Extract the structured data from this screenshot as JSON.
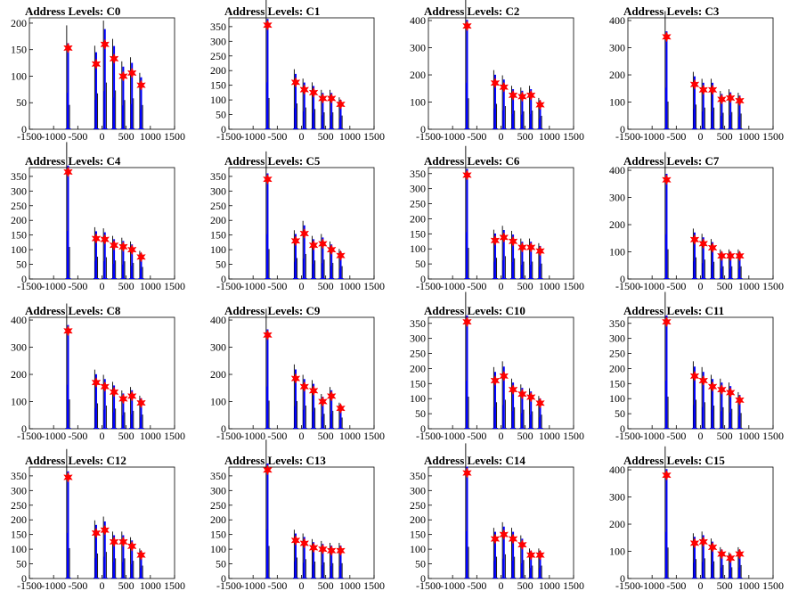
{
  "colors": {
    "histogram": "#0000ff",
    "marker": "#ff0000",
    "baseline": "#000000"
  },
  "chart_data": [
    {
      "type": "bar",
      "title": "Address Levels: C0",
      "xlim": [
        -1500,
        1500
      ],
      "ylim": [
        0,
        210
      ],
      "xticks": [
        "-1500",
        "-1000",
        "-500",
        "0",
        "500",
        "1000",
        "1500"
      ],
      "yticks": [
        "0",
        "50",
        "100",
        "150",
        "200"
      ],
      "peaks": [
        {
          "x": -700,
          "y": 153
        },
        {
          "x": -120,
          "y": 123
        },
        {
          "x": 60,
          "y": 160
        },
        {
          "x": 250,
          "y": 133
        },
        {
          "x": 440,
          "y": 100
        },
        {
          "x": 620,
          "y": 106
        },
        {
          "x": 810,
          "y": 83
        }
      ]
    },
    {
      "type": "bar",
      "title": "Address Levels: C1",
      "xlim": [
        -1500,
        1500
      ],
      "ylim": [
        0,
        380
      ],
      "xticks": [
        "-1500",
        "-1000",
        "-500",
        "0",
        "500",
        "1000",
        "1500"
      ],
      "yticks": [
        "0",
        "50",
        "100",
        "150",
        "200",
        "250",
        "300",
        "350"
      ],
      "peaks": [
        {
          "x": -700,
          "y": 355
        },
        {
          "x": -120,
          "y": 160
        },
        {
          "x": 60,
          "y": 135
        },
        {
          "x": 250,
          "y": 125
        },
        {
          "x": 440,
          "y": 105
        },
        {
          "x": 620,
          "y": 105
        },
        {
          "x": 810,
          "y": 85
        }
      ]
    },
    {
      "type": "bar",
      "title": "Address Levels: C2",
      "xlim": [
        -1500,
        1500
      ],
      "ylim": [
        0,
        410
      ],
      "xticks": [
        "-1500",
        "-1000",
        "-500",
        "0",
        "500",
        "1000",
        "1500"
      ],
      "yticks": [
        "0",
        "100",
        "200",
        "300",
        "400"
      ],
      "peaks": [
        {
          "x": -700,
          "y": 380
        },
        {
          "x": -120,
          "y": 170
        },
        {
          "x": 60,
          "y": 155
        },
        {
          "x": 250,
          "y": 125
        },
        {
          "x": 440,
          "y": 120
        },
        {
          "x": 620,
          "y": 125
        },
        {
          "x": 810,
          "y": 90
        }
      ]
    },
    {
      "type": "bar",
      "title": "Address Levels: C3",
      "xlim": [
        -1500,
        1500
      ],
      "ylim": [
        0,
        410
      ],
      "xticks": [
        "-1500",
        "-1000",
        "-500",
        "0",
        "500",
        "1000",
        "1500"
      ],
      "yticks": [
        "0",
        "100",
        "200",
        "300",
        "400"
      ],
      "peaks": [
        {
          "x": -700,
          "y": 340
        },
        {
          "x": -120,
          "y": 165
        },
        {
          "x": 60,
          "y": 145
        },
        {
          "x": 250,
          "y": 145
        },
        {
          "x": 440,
          "y": 110
        },
        {
          "x": 620,
          "y": 115
        },
        {
          "x": 810,
          "y": 105
        }
      ]
    },
    {
      "type": "bar",
      "title": "Address Levels: C4",
      "xlim": [
        -1500,
        1500
      ],
      "ylim": [
        0,
        380
      ],
      "xticks": [
        "-1500",
        "-1000",
        "-500",
        "0",
        "500",
        "1000",
        "1500"
      ],
      "yticks": [
        "0",
        "50",
        "100",
        "150",
        "200",
        "250",
        "300",
        "350"
      ],
      "peaks": [
        {
          "x": -700,
          "y": 365
        },
        {
          "x": -120,
          "y": 138
        },
        {
          "x": 60,
          "y": 135
        },
        {
          "x": 250,
          "y": 115
        },
        {
          "x": 440,
          "y": 110
        },
        {
          "x": 620,
          "y": 100
        },
        {
          "x": 810,
          "y": 75
        }
      ]
    },
    {
      "type": "bar",
      "title": "Address Levels: C5",
      "xlim": [
        -1500,
        1500
      ],
      "ylim": [
        0,
        380
      ],
      "xticks": [
        "-1500",
        "-1000",
        "-500",
        "0",
        "500",
        "1000",
        "1500"
      ],
      "yticks": [
        "0",
        "50",
        "100",
        "150",
        "200",
        "250",
        "300",
        "350"
      ],
      "peaks": [
        {
          "x": -700,
          "y": 340
        },
        {
          "x": -120,
          "y": 130
        },
        {
          "x": 60,
          "y": 155
        },
        {
          "x": 250,
          "y": 115
        },
        {
          "x": 440,
          "y": 120
        },
        {
          "x": 620,
          "y": 100
        },
        {
          "x": 810,
          "y": 80
        }
      ]
    },
    {
      "type": "bar",
      "title": "Address Levels: C6",
      "xlim": [
        -1500,
        1500
      ],
      "ylim": [
        0,
        370
      ],
      "xticks": [
        "-1500",
        "-1000",
        "-500",
        "0",
        "500",
        "1000",
        "1500"
      ],
      "yticks": [
        "0",
        "50",
        "100",
        "150",
        "200",
        "250",
        "300",
        "350"
      ],
      "peaks": [
        {
          "x": -700,
          "y": 345
        },
        {
          "x": -120,
          "y": 128
        },
        {
          "x": 60,
          "y": 138
        },
        {
          "x": 250,
          "y": 125
        },
        {
          "x": 440,
          "y": 105
        },
        {
          "x": 620,
          "y": 105
        },
        {
          "x": 810,
          "y": 93
        }
      ]
    },
    {
      "type": "bar",
      "title": "Address Levels: C7",
      "xlim": [
        -1500,
        1500
      ],
      "ylim": [
        0,
        410
      ],
      "xticks": [
        "-1500",
        "-1000",
        "-500",
        "0",
        "500",
        "1000",
        "1500"
      ],
      "yticks": [
        "0",
        "100",
        "200",
        "300",
        "400"
      ],
      "peaks": [
        {
          "x": -700,
          "y": 365
        },
        {
          "x": -120,
          "y": 145
        },
        {
          "x": 60,
          "y": 130
        },
        {
          "x": 250,
          "y": 115
        },
        {
          "x": 440,
          "y": 85
        },
        {
          "x": 620,
          "y": 85
        },
        {
          "x": 810,
          "y": 85
        }
      ]
    },
    {
      "type": "bar",
      "title": "Address Levels: C8",
      "xlim": [
        -1500,
        1500
      ],
      "ylim": [
        0,
        410
      ],
      "xticks": [
        "-1500",
        "-1000",
        "-500",
        "0",
        "500",
        "1000",
        "1500"
      ],
      "yticks": [
        "0",
        "100",
        "200",
        "300",
        "400"
      ],
      "peaks": [
        {
          "x": -700,
          "y": 360
        },
        {
          "x": -120,
          "y": 170
        },
        {
          "x": 60,
          "y": 155
        },
        {
          "x": 250,
          "y": 135
        },
        {
          "x": 440,
          "y": 110
        },
        {
          "x": 620,
          "y": 120
        },
        {
          "x": 810,
          "y": 95
        }
      ]
    },
    {
      "type": "bar",
      "title": "Address Levels: C9",
      "xlim": [
        -1500,
        1500
      ],
      "ylim": [
        0,
        410
      ],
      "xticks": [
        "-1500",
        "-1000",
        "-500",
        "0",
        "500",
        "1000",
        "1500"
      ],
      "yticks": [
        "0",
        "100",
        "200",
        "300",
        "400"
      ],
      "peaks": [
        {
          "x": -700,
          "y": 345
        },
        {
          "x": -120,
          "y": 185
        },
        {
          "x": 60,
          "y": 155
        },
        {
          "x": 250,
          "y": 140
        },
        {
          "x": 440,
          "y": 100
        },
        {
          "x": 620,
          "y": 120
        },
        {
          "x": 810,
          "y": 75
        }
      ]
    },
    {
      "type": "bar",
      "title": "Address Levels: C10",
      "xlim": [
        -1500,
        1500
      ],
      "ylim": [
        0,
        370
      ],
      "xticks": [
        "-1500",
        "-1000",
        "-500",
        "0",
        "500",
        "1000",
        "1500"
      ],
      "yticks": [
        "0",
        "50",
        "100",
        "150",
        "200",
        "250",
        "300",
        "350"
      ],
      "peaks": [
        {
          "x": -700,
          "y": 355
        },
        {
          "x": -120,
          "y": 160
        },
        {
          "x": 60,
          "y": 175
        },
        {
          "x": 250,
          "y": 130
        },
        {
          "x": 440,
          "y": 115
        },
        {
          "x": 620,
          "y": 105
        },
        {
          "x": 810,
          "y": 85
        }
      ]
    },
    {
      "type": "bar",
      "title": "Address Levels: C11",
      "xlim": [
        -1500,
        1500
      ],
      "ylim": [
        0,
        370
      ],
      "xticks": [
        "-1500",
        "-1000",
        "-500",
        "0",
        "500",
        "1000",
        "1500"
      ],
      "yticks": [
        "0",
        "50",
        "100",
        "150",
        "200",
        "250",
        "300",
        "350"
      ],
      "peaks": [
        {
          "x": -700,
          "y": 355
        },
        {
          "x": -120,
          "y": 175
        },
        {
          "x": 60,
          "y": 160
        },
        {
          "x": 250,
          "y": 140
        },
        {
          "x": 440,
          "y": 130
        },
        {
          "x": 620,
          "y": 120
        },
        {
          "x": 810,
          "y": 95
        }
      ]
    },
    {
      "type": "bar",
      "title": "Address Levels: C12",
      "xlim": [
        -1500,
        1500
      ],
      "ylim": [
        0,
        380
      ],
      "xticks": [
        "-1500",
        "-1000",
        "-500",
        "0",
        "500",
        "1000",
        "1500"
      ],
      "yticks": [
        "0",
        "50",
        "100",
        "150",
        "200",
        "250",
        "300",
        "350"
      ],
      "peaks": [
        {
          "x": -700,
          "y": 345
        },
        {
          "x": -120,
          "y": 155
        },
        {
          "x": 60,
          "y": 165
        },
        {
          "x": 250,
          "y": 125
        },
        {
          "x": 440,
          "y": 125
        },
        {
          "x": 620,
          "y": 110
        },
        {
          "x": 810,
          "y": 80
        }
      ]
    },
    {
      "type": "bar",
      "title": "Address Levels: C13",
      "xlim": [
        -1500,
        1500
      ],
      "ylim": [
        0,
        380
      ],
      "xticks": [
        "-1500",
        "-1000",
        "-500",
        "0",
        "500",
        "1000",
        "1500"
      ],
      "yticks": [
        "0",
        "50",
        "100",
        "150",
        "200",
        "250",
        "300",
        "350"
      ],
      "peaks": [
        {
          "x": -700,
          "y": 370
        },
        {
          "x": -120,
          "y": 130
        },
        {
          "x": 60,
          "y": 120
        },
        {
          "x": 250,
          "y": 105
        },
        {
          "x": 440,
          "y": 100
        },
        {
          "x": 620,
          "y": 95
        },
        {
          "x": 810,
          "y": 95
        }
      ]
    },
    {
      "type": "bar",
      "title": "Address Levels: C14",
      "xlim": [
        -1500,
        1500
      ],
      "ylim": [
        0,
        380
      ],
      "xticks": [
        "-1500",
        "-1000",
        "-500",
        "0",
        "500",
        "1000",
        "1500"
      ],
      "yticks": [
        "0",
        "50",
        "100",
        "150",
        "200",
        "250",
        "300",
        "350"
      ],
      "peaks": [
        {
          "x": -700,
          "y": 360
        },
        {
          "x": -120,
          "y": 135
        },
        {
          "x": 60,
          "y": 150
        },
        {
          "x": 250,
          "y": 135
        },
        {
          "x": 440,
          "y": 115
        },
        {
          "x": 620,
          "y": 80
        },
        {
          "x": 810,
          "y": 80
        }
      ]
    },
    {
      "type": "bar",
      "title": "Address Levels: C15",
      "xlim": [
        -1500,
        1500
      ],
      "ylim": [
        0,
        410
      ],
      "xticks": [
        "-1500",
        "-1000",
        "-500",
        "0",
        "500",
        "1000",
        "1500"
      ],
      "yticks": [
        "0",
        "100",
        "200",
        "300",
        "400"
      ],
      "peaks": [
        {
          "x": -700,
          "y": 380
        },
        {
          "x": -120,
          "y": 130
        },
        {
          "x": 60,
          "y": 135
        },
        {
          "x": 250,
          "y": 115
        },
        {
          "x": 440,
          "y": 90
        },
        {
          "x": 620,
          "y": 75
        },
        {
          "x": 810,
          "y": 90
        }
      ]
    }
  ]
}
